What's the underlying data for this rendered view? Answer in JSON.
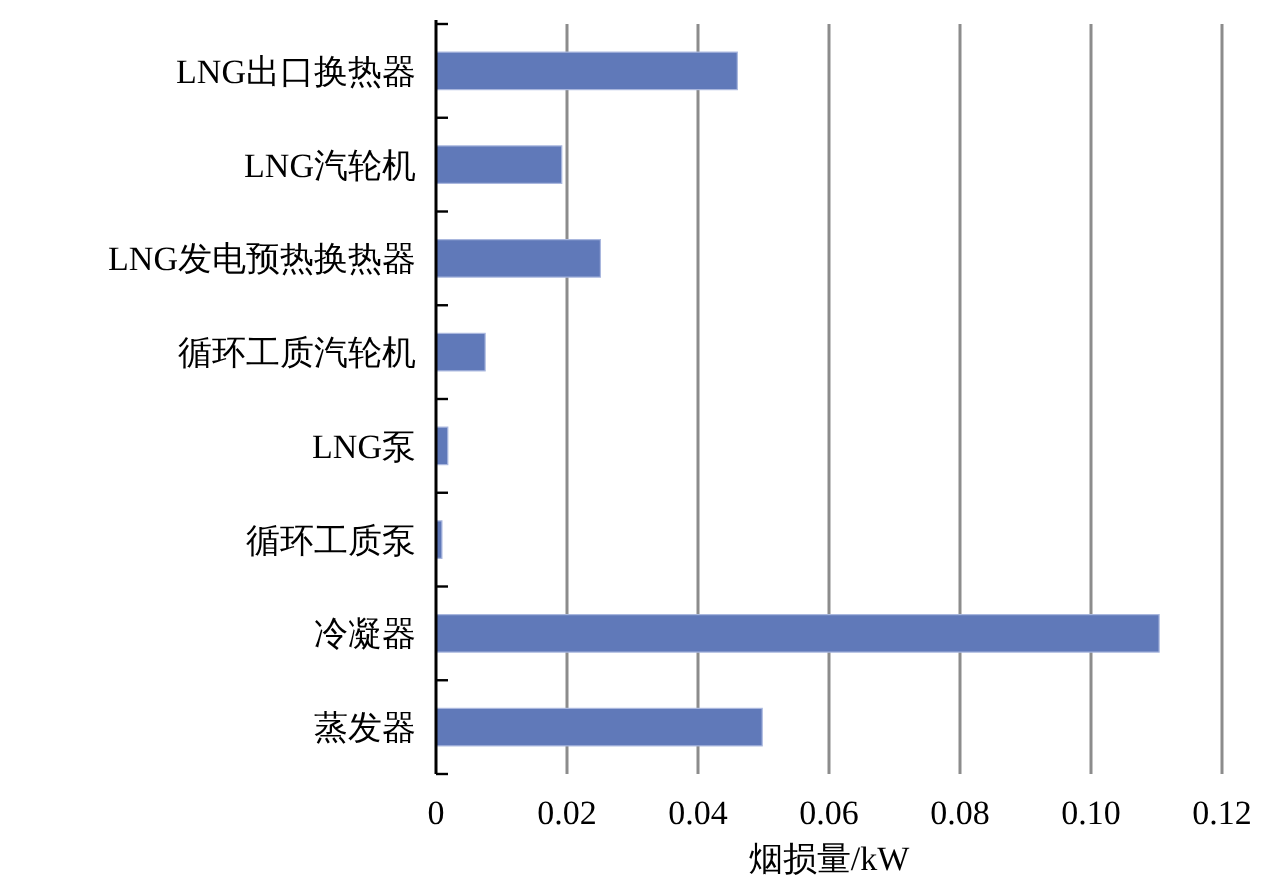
{
  "chart_data": {
    "type": "bar",
    "orientation": "horizontal",
    "categories": [
      "LNG出口换热器",
      "LNG汽轮机",
      "LNG发电预热换热器",
      "循环工质汽轮机",
      "LNG泵",
      "循环工质泵",
      "冷凝器",
      "蒸发器"
    ],
    "values": [
      0.046,
      0.0192,
      0.0251,
      0.0075,
      0.0018,
      0.0009,
      0.1104,
      0.0498
    ],
    "color": "#6079b9",
    "xlim": [
      0,
      0.12
    ],
    "xticks": [
      0,
      0.02,
      0.04,
      0.06,
      0.08,
      {
        "value": 0.1,
        "label": "0.10"
      },
      0.12
    ],
    "xlabel": "烟损量/kW",
    "grid": "x"
  }
}
